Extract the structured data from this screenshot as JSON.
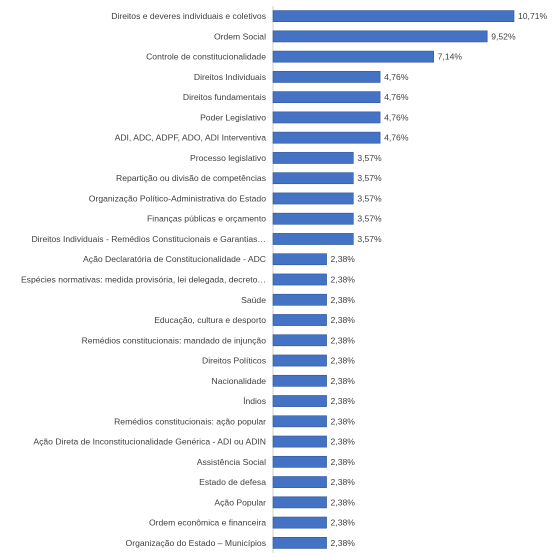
{
  "chart_data": {
    "type": "bar",
    "orientation": "horizontal",
    "value_format": "percent-comma-2dp",
    "categories": [
      "Direitos e deveres individuais e coletivos",
      "Ordem Social",
      "Controle de constitucionalidade",
      "Direitos Individuais",
      "Direitos fundamentais",
      "Poder Legislativo",
      "ADI, ADC, ADPF, ADO, ADI Interventiva",
      "Processo legislativo",
      "Repartição ou divisão de competências",
      "Organização Político-Administrativa do Estado",
      "Finanças públicas e orçamento",
      "Direitos Individuais - Remédios Constitucionais e Garantias…",
      "Ação Declaratória de Constitucionalidade - ADC",
      "Espécies normativas: medida provisória, lei delegada, decreto…",
      "Saúde",
      "Educação, cultura e desporto",
      "Remédios constitucionais: mandado de injunção",
      "Direitos Políticos",
      "Nacionalidade",
      "Índios",
      "Remédios constitucionais: ação popular",
      "Ação Direta de Inconstitucionalidade Genérica - ADI ou ADIN",
      "Assistência Social",
      "Estado de defesa",
      "Ação Popular",
      "Ordem econômica e financeira",
      "Organização do Estado – Municípios"
    ],
    "values": [
      10.71,
      9.52,
      7.14,
      4.76,
      4.76,
      4.76,
      4.76,
      3.57,
      3.57,
      3.57,
      3.57,
      3.57,
      2.38,
      2.38,
      2.38,
      2.38,
      2.38,
      2.38,
      2.38,
      2.38,
      2.38,
      2.38,
      2.38,
      2.38,
      2.38,
      2.38,
      2.38
    ],
    "value_labels": [
      "10,71%",
      "9,52%",
      "7,14%",
      "4,76%",
      "4,76%",
      "4,76%",
      "4,76%",
      "3,57%",
      "3,57%",
      "3,57%",
      "3,57%",
      "3,57%",
      "2,38%",
      "2,38%",
      "2,38%",
      "2,38%",
      "2,38%",
      "2,38%",
      "2,38%",
      "2,38%",
      "2,38%",
      "2,38%",
      "2,38%",
      "2,38%",
      "2,38%",
      "2,38%",
      "2,38%"
    ],
    "xlim": [
      0,
      11
    ],
    "title": "",
    "xlabel": "",
    "ylabel": "",
    "grid": false,
    "legend": "none",
    "bar_color": "#4472c4"
  }
}
